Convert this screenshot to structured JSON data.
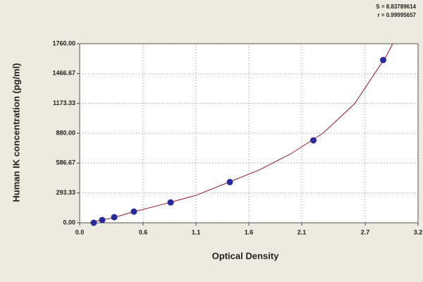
{
  "chart_data": {
    "type": "scatter",
    "annotations": [
      "S = 8.83789614",
      "r = 0.99995657"
    ],
    "x_label": "Optical Density",
    "y_label": "Human IK concentration (pg/ml)",
    "xlim": [
      0,
      3.2
    ],
    "ylim": [
      0,
      1760
    ],
    "xticks": [
      {
        "value": 0,
        "label": "0.0"
      },
      0.6,
      1.1,
      1.6,
      2.1,
      2.7,
      3.2
    ],
    "yticks": [
      {
        "value": 0,
        "label": "0.00"
      },
      293.33,
      586.67,
      {
        "value": 880,
        "label": "880.00"
      },
      1173.33,
      1466.67,
      {
        "value": 1760,
        "label": "1760.00"
      }
    ],
    "grid": true,
    "points": {
      "color": "#2a2a9c",
      "x": [
        0.133,
        0.213,
        0.327,
        0.513,
        0.86,
        1.42,
        2.21,
        2.87
      ],
      "y": [
        0,
        27,
        55,
        110,
        200,
        400,
        810,
        1600
      ]
    },
    "curve": {
      "color": "#8b1a2a",
      "x": [
        0.1,
        0.3,
        0.5,
        0.8,
        1.1,
        1.4,
        1.7,
        2.0,
        2.3,
        2.6,
        2.9,
        2.96
      ],
      "y": [
        5,
        45,
        105,
        185,
        270,
        395,
        520,
        680,
        880,
        1170,
        1640,
        1760
      ]
    }
  }
}
